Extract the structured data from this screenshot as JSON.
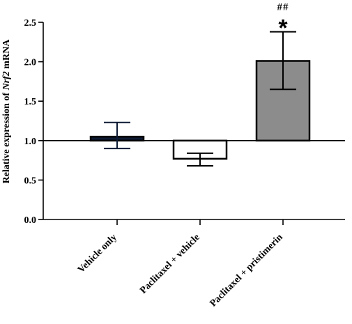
{
  "chart_data": {
    "type": "bar",
    "title": "",
    "xlabel": "",
    "ylabel_prefix": "Relative expression of ",
    "ylabel_gene": "Nrf2",
    "ylabel_suffix": " mRNA",
    "ylim": [
      0,
      2.5
    ],
    "yticks": [
      0.0,
      0.5,
      1.0,
      1.5,
      2.0,
      2.5
    ],
    "ytick_labels": [
      "0.0",
      "0.5",
      "1.0",
      "1.5",
      "2.0",
      "2.5"
    ],
    "baseline": 1.0,
    "categories": [
      "Vehicle only",
      "Paclitaxel + vehicle",
      "Paclitaxel + pristimerin"
    ],
    "values": [
      1.05,
      0.77,
      2.01
    ],
    "error_low": [
      0.9,
      0.68,
      1.65
    ],
    "error_high": [
      1.23,
      0.84,
      2.38
    ],
    "bar_colors": [
      "#0d1a33",
      "#ffffff",
      "#8c8c8c"
    ],
    "annotations": [
      {
        "category_index": 2,
        "hash": "##",
        "star": "*"
      }
    ],
    "grid": false
  }
}
